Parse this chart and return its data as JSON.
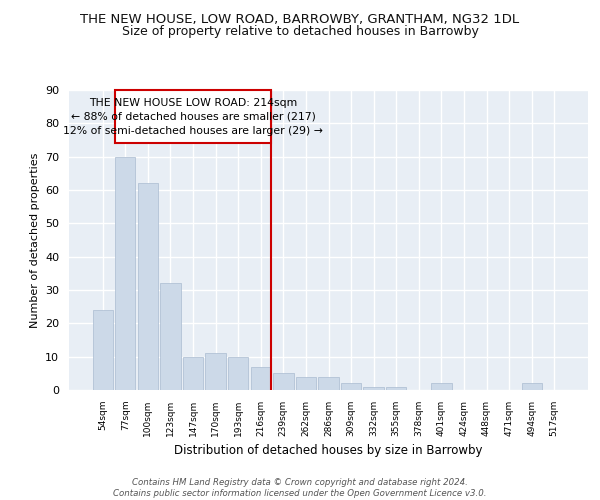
{
  "title": "THE NEW HOUSE, LOW ROAD, BARROWBY, GRANTHAM, NG32 1DL",
  "subtitle": "Size of property relative to detached houses in Barrowby",
  "xlabel": "Distribution of detached houses by size in Barrowby",
  "ylabel": "Number of detached properties",
  "bar_labels": [
    "54sqm",
    "77sqm",
    "100sqm",
    "123sqm",
    "147sqm",
    "170sqm",
    "193sqm",
    "216sqm",
    "239sqm",
    "262sqm",
    "286sqm",
    "309sqm",
    "332sqm",
    "355sqm",
    "378sqm",
    "401sqm",
    "424sqm",
    "448sqm",
    "471sqm",
    "494sqm",
    "517sqm"
  ],
  "bar_values": [
    24,
    70,
    62,
    32,
    10,
    11,
    10,
    7,
    5,
    4,
    4,
    2,
    1,
    1,
    0,
    2,
    0,
    0,
    0,
    2,
    0
  ],
  "bar_color": "#ccd9e8",
  "bar_edge_color": "#aabbd0",
  "background_color": "#e8eef5",
  "grid_color": "#ffffff",
  "vline_color": "#cc0000",
  "annotation_text": "THE NEW HOUSE LOW ROAD: 214sqm\n← 88% of detached houses are smaller (217)\n12% of semi-detached houses are larger (29) →",
  "annotation_box_color": "#cc0000",
  "ylim": [
    0,
    90
  ],
  "yticks": [
    0,
    10,
    20,
    30,
    40,
    50,
    60,
    70,
    80,
    90
  ],
  "footer": "Contains HM Land Registry data © Crown copyright and database right 2024.\nContains public sector information licensed under the Open Government Licence v3.0.",
  "title_fontsize": 9.5,
  "subtitle_fontsize": 9,
  "annotation_fontsize": 7.8
}
